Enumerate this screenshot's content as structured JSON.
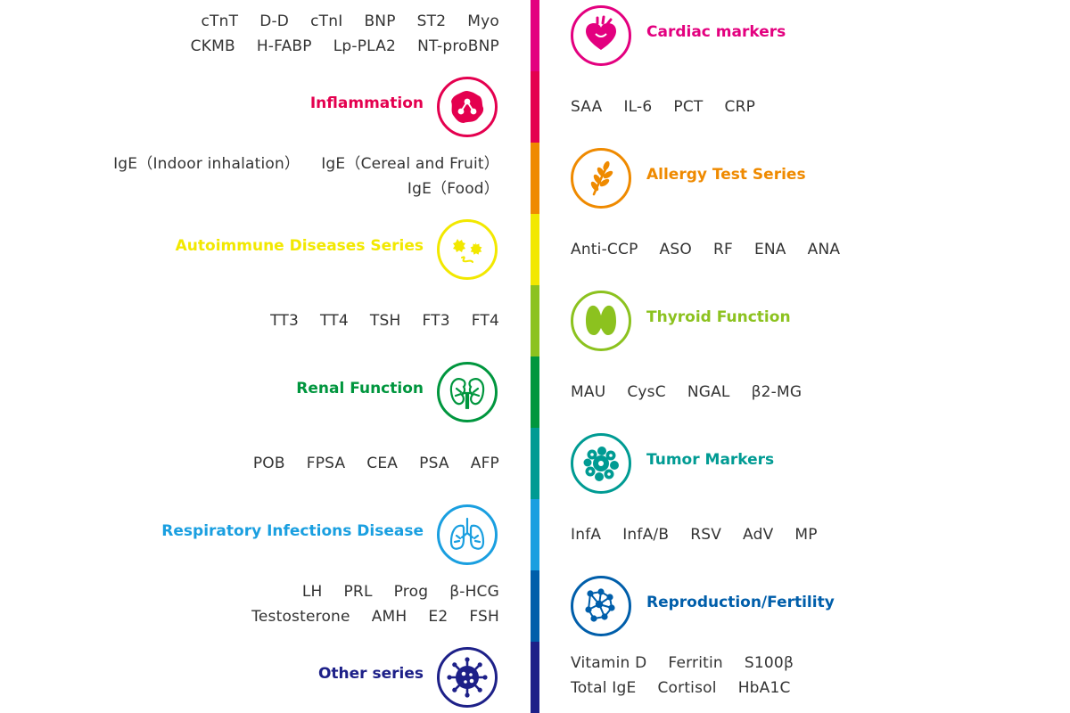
{
  "categories": [
    {
      "label": "Cardiac markers",
      "color": "#e3007f",
      "icon": "heart-icon",
      "side": "right",
      "tests": [
        [
          "cTnT",
          "D-D",
          "cTnI",
          "BNP",
          "ST2",
          "Myo"
        ],
        [
          "CKMB",
          "H-FABP",
          "Lp-PLA2",
          "NT-proBNP"
        ]
      ]
    },
    {
      "label": "Inflammation",
      "color": "#e4004f",
      "icon": "inflammation-cell-icon",
      "side": "left",
      "tests": [
        [
          "SAA",
          "IL-6",
          "PCT",
          "CRP"
        ]
      ]
    },
    {
      "label": "Allergy Test Series",
      "color": "#ef8a00",
      "icon": "wheat-icon",
      "side": "right",
      "tests": [
        [
          "IgE（Indoor inhalation）",
          "IgE（Cereal and Fruit）"
        ],
        [
          "IgE（Food）"
        ]
      ]
    },
    {
      "label": "Autoimmune Diseases Series",
      "color": "#f2e800",
      "icon": "face-icon",
      "side": "left",
      "tests": [
        [
          "Anti-CCP",
          "ASO",
          "RF",
          "ENA",
          "ANA"
        ]
      ]
    },
    {
      "label": "Thyroid Function",
      "color": "#8cc21f",
      "icon": "thyroid-icon",
      "side": "right",
      "tests": [
        [
          "TT3",
          "TT4",
          "TSH",
          "FT3",
          "FT4"
        ]
      ]
    },
    {
      "label": "Renal Function",
      "color": "#00963e",
      "icon": "kidney-icon",
      "side": "left",
      "tests": [
        [
          "MAU",
          "CysC",
          "NGAL",
          "β2-MG"
        ]
      ]
    },
    {
      "label": "Tumor Markers",
      "color": "#009b93",
      "icon": "tumor-cells-icon",
      "side": "right",
      "tests": [
        [
          "POB",
          "FPSA",
          "CEA",
          "PSA",
          "AFP"
        ]
      ]
    },
    {
      "label": "Respiratory Infections Disease",
      "color": "#1a9fe0",
      "icon": "lungs-icon",
      "side": "left",
      "tests": [
        [
          "InfA",
          "InfA/B",
          "RSV",
          "AdV",
          "MP"
        ]
      ]
    },
    {
      "label": "Reproduction/Fertility",
      "color": "#005eaa",
      "icon": "molecule-icon",
      "side": "right",
      "tests": [
        [
          "LH",
          "PRL",
          "Prog",
          "β-HCG"
        ],
        [
          "Testosterone",
          "AMH",
          "E2",
          "FSH"
        ]
      ]
    },
    {
      "label": "Other series",
      "color": "#1d2088",
      "icon": "virus-icon",
      "side": "left",
      "tests": [
        [
          "Vitamin D",
          "Ferritin",
          "S100β"
        ],
        [
          "Total IgE",
          "Cortisol",
          "HbA1C"
        ]
      ]
    }
  ]
}
